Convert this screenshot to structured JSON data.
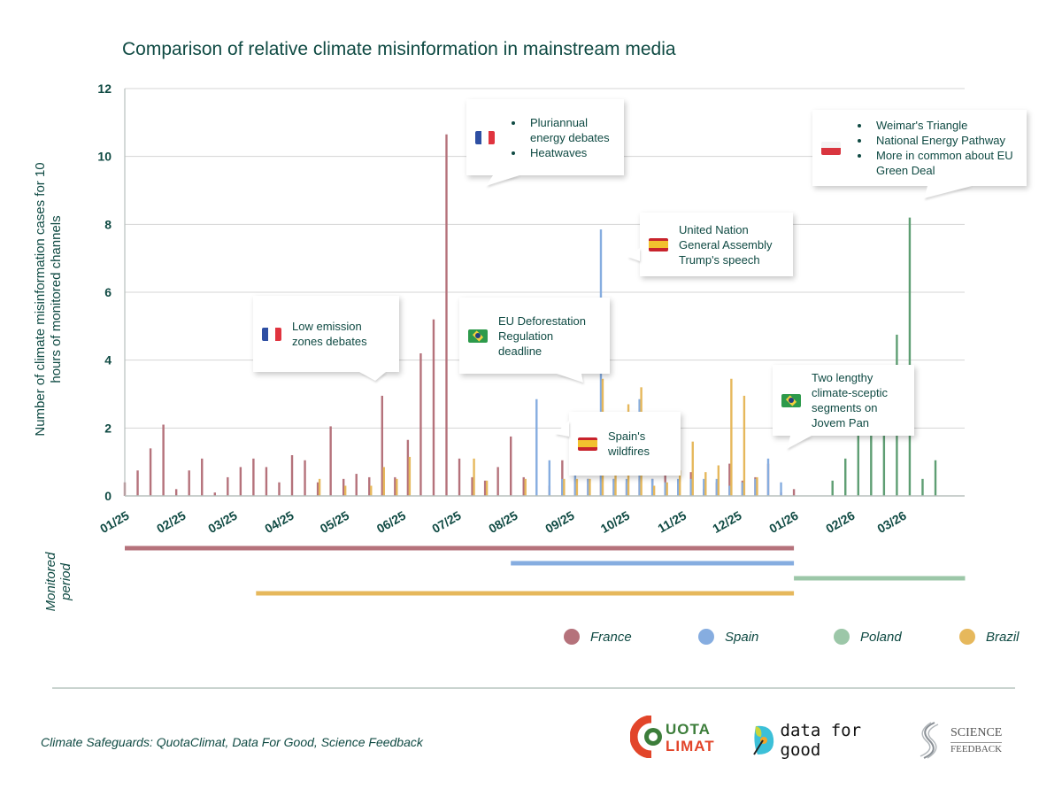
{
  "chart_data": {
    "type": "bar",
    "title": "Comparison of relative climate misinformation in mainstream media",
    "ylabel": "Number of climate misinformation cases for 10 hours of monitored channels",
    "xlabel": "",
    "ylim": [
      0,
      12
    ],
    "yticks": [
      0,
      2,
      4,
      6,
      8,
      10,
      12
    ],
    "grid": true,
    "x_unit": "week",
    "week_count": 66,
    "month_ticks": [
      {
        "label": "01/25",
        "week": 0
      },
      {
        "label": "02/25",
        "week": 4.4
      },
      {
        "label": "03/25",
        "week": 8.4
      },
      {
        "label": "04/25",
        "week": 12.8
      },
      {
        "label": "05/25",
        "week": 17.1
      },
      {
        "label": "06/25",
        "week": 21.5
      },
      {
        "label": "07/25",
        "week": 25.8
      },
      {
        "label": "08/25",
        "week": 30.2
      },
      {
        "label": "09/25",
        "week": 34.6
      },
      {
        "label": "10/25",
        "week": 38.9
      },
      {
        "label": "11/25",
        "week": 43.3
      },
      {
        "label": "12/25",
        "week": 47.6
      },
      {
        "label": "01/26",
        "week": 52
      },
      {
        "label": "02/26",
        "week": 56.4
      },
      {
        "label": "03/26",
        "week": 60.4
      }
    ],
    "series": [
      {
        "name": "France",
        "color": "#b5727b",
        "start_week": 0,
        "values": [
          0.4,
          0.75,
          1.4,
          2.1,
          0.2,
          0.75,
          1.1,
          0.1,
          0.55,
          0.85,
          1.1,
          0.85,
          0.4,
          1.2,
          1.05,
          0.4,
          2.05,
          0.5,
          0.65,
          0.55,
          2.95,
          0.55,
          1.65,
          4.2,
          5.2,
          10.65,
          1.1,
          0.55,
          0.45,
          0.85,
          1.75,
          0.55,
          0,
          0.3,
          1.05,
          0.5,
          0.5,
          0.6,
          0.5,
          0.4,
          0.5,
          0.5,
          0.6,
          0.4,
          0.7,
          0.2,
          0.4,
          0.95,
          0.45,
          0.55,
          0.95,
          0.1,
          0.2
        ]
      },
      {
        "name": "Spain",
        "color": "#86ade0",
        "start_week": 32,
        "values": [
          2.85,
          1.05,
          0.5,
          0.6,
          0.5,
          7.85,
          0.5,
          0.5,
          2.85,
          0.5,
          0.4,
          0.5,
          0.5,
          0.5,
          0.5,
          0.3,
          0.4,
          0.5,
          1.1,
          0.4
        ]
      },
      {
        "name": "Poland",
        "color": "#5e9e73",
        "start_week": 52,
        "values": [
          0,
          0,
          0,
          0.45,
          1.1,
          2.0,
          2.0,
          2.0,
          4.75,
          8.2,
          0.5,
          1.05
        ]
      },
      {
        "name": "Brazil",
        "color": "#e6b85c",
        "start_week": 10,
        "values": [
          0,
          0,
          0,
          0,
          0,
          0.5,
          0,
          0.3,
          0,
          0.3,
          0.85,
          0.5,
          1.15,
          0,
          0,
          0,
          0,
          1.1,
          0.45,
          0,
          0,
          0.5,
          0,
          0,
          0.5,
          0.5,
          0.5,
          3.45,
          0.6,
          2.7,
          3.2,
          0.3,
          0.4,
          0.75,
          1.6,
          0.7,
          0.9,
          3.45,
          2.95,
          0.55,
          0,
          0
        ]
      }
    ],
    "monitored_periods": [
      {
        "name": "France",
        "start_week": 0,
        "end_week": 52
      },
      {
        "name": "Spain",
        "start_week": 30,
        "end_week": 52
      },
      {
        "name": "Poland",
        "start_week": 52,
        "end_week": 65.3
      },
      {
        "name": "Brazil",
        "start_week": 10.2,
        "end_week": 52
      }
    ],
    "legend": [
      "France",
      "Spain",
      "Poland",
      "Brazil"
    ],
    "legend_position": "bottom-right"
  },
  "annotations": [
    {
      "id": "low-emission",
      "flag": "France",
      "lines": [
        "Low emission",
        "zones debates"
      ],
      "bullets": false
    },
    {
      "id": "pluriannual",
      "flag": "France",
      "lines": [
        "Pluriannual energy debates",
        "Heatwaves"
      ],
      "bullets": true
    },
    {
      "id": "eu-deforestation",
      "flag": "Brazil",
      "lines": [
        "EU Deforestation",
        "Regulation",
        "deadline"
      ],
      "bullets": false
    },
    {
      "id": "un-assembly",
      "flag": "Spain",
      "lines": [
        "United Nation",
        "General Assembly",
        "Trump's speech"
      ],
      "bullets": false
    },
    {
      "id": "spain-wildfires",
      "flag": "Spain",
      "lines": [
        "Spain's",
        "wildfires"
      ],
      "bullets": false
    },
    {
      "id": "jovem-pan",
      "flag": "Brazil",
      "lines": [
        "Two lengthy",
        "climate-sceptic",
        "segments on",
        "Jovem Pan"
      ],
      "bullets": false
    },
    {
      "id": "weimar",
      "flag": "Poland",
      "lines": [
        "Weimar's Triangle",
        "National Energy Pathway",
        "More in common about EU Green Deal"
      ],
      "bullets": true
    }
  ],
  "labels": {
    "period_label_1": "Monitored",
    "period_label_2": "period",
    "ylabel_line1": "Number of climate misinformation cases for 10",
    "ylabel_line2": "hours of monitored channels"
  },
  "footer": {
    "credit": "Climate Safeguards: QuotaClimat, Data For Good, Science Feedback",
    "logos": {
      "quota_top": "UOTA",
      "quota_bottom": "LIMAT",
      "dfg": "data for good",
      "sf_top": "SCIENCE",
      "sf_bottom": "FEEDBACK"
    }
  }
}
